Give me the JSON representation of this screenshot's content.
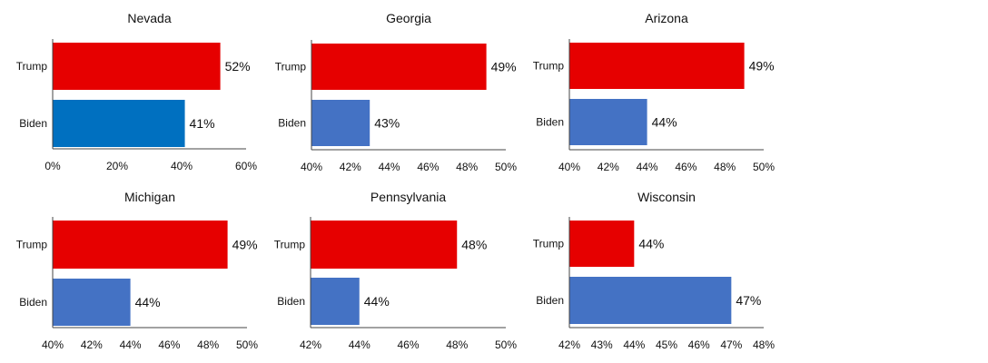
{
  "chart_data": [
    {
      "type": "bar",
      "orientation": "horizontal",
      "title": "Nevada",
      "categories": [
        "Trump",
        "Biden"
      ],
      "values": [
        52,
        41
      ],
      "value_labels": [
        "52%",
        "41%"
      ],
      "colors": [
        "#e60000",
        "#0070c0"
      ],
      "xlim": [
        0,
        60
      ],
      "ticks": [
        0,
        20,
        40,
        60
      ],
      "tick_labels": [
        "0%",
        "20%",
        "40%",
        "60%"
      ]
    },
    {
      "type": "bar",
      "orientation": "horizontal",
      "title": "Georgia",
      "categories": [
        "Trump",
        "Biden"
      ],
      "values": [
        49,
        43
      ],
      "value_labels": [
        "49%",
        "43%"
      ],
      "colors": [
        "#e60000",
        "#4472c4"
      ],
      "xlim": [
        40,
        50
      ],
      "ticks": [
        40,
        42,
        44,
        46,
        48,
        50
      ],
      "tick_labels": [
        "40%",
        "42%",
        "44%",
        "46%",
        "48%",
        "50%"
      ]
    },
    {
      "type": "bar",
      "orientation": "horizontal",
      "title": "Arizona",
      "categories": [
        "Trump",
        "Biden"
      ],
      "values": [
        49,
        44
      ],
      "value_labels": [
        "49%",
        "44%"
      ],
      "colors": [
        "#e60000",
        "#4472c4"
      ],
      "xlim": [
        40,
        50
      ],
      "ticks": [
        40,
        42,
        44,
        46,
        48,
        50
      ],
      "tick_labels": [
        "40%",
        "42%",
        "44%",
        "46%",
        "48%",
        "50%"
      ]
    },
    {
      "type": "bar",
      "orientation": "horizontal",
      "title": "Michigan",
      "categories": [
        "Trump",
        "Biden"
      ],
      "values": [
        49,
        44
      ],
      "value_labels": [
        "49%",
        "44%"
      ],
      "colors": [
        "#e60000",
        "#4472c4"
      ],
      "xlim": [
        40,
        50
      ],
      "ticks": [
        40,
        42,
        44,
        46,
        48,
        50
      ],
      "tick_labels": [
        "40%",
        "42%",
        "44%",
        "46%",
        "48%",
        "50%"
      ]
    },
    {
      "type": "bar",
      "orientation": "horizontal",
      "title": "Pennsylvania",
      "categories": [
        "Trump",
        "Biden"
      ],
      "values": [
        48,
        44
      ],
      "value_labels": [
        "48%",
        "44%"
      ],
      "colors": [
        "#e60000",
        "#4472c4"
      ],
      "xlim": [
        42,
        50
      ],
      "ticks": [
        42,
        44,
        46,
        48,
        50
      ],
      "tick_labels": [
        "42%",
        "44%",
        "46%",
        "48%",
        "50%"
      ]
    },
    {
      "type": "bar",
      "orientation": "horizontal",
      "title": "Wisconsin",
      "categories": [
        "Trump",
        "Biden"
      ],
      "values": [
        44,
        47
      ],
      "value_labels": [
        "44%",
        "47%"
      ],
      "colors": [
        "#e60000",
        "#4472c4"
      ],
      "xlim": [
        42,
        48
      ],
      "ticks": [
        42,
        43,
        44,
        45,
        46,
        47,
        48
      ],
      "tick_labels": [
        "42%",
        "43%",
        "44%",
        "45%",
        "46%",
        "47%",
        "48%"
      ]
    }
  ]
}
